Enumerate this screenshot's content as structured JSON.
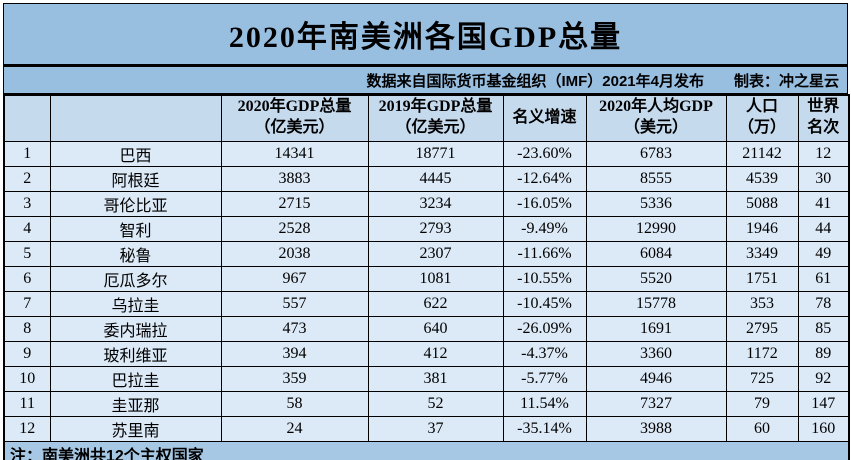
{
  "title": "2020年南美洲各国GDP总量",
  "subtitle": {
    "source": "数据来自国际货币基金组织（IMF）2021年4月发布",
    "credit": "制表：冲之星云"
  },
  "note": "注：南美洲共12个主权国家",
  "chart_data": {
    "type": "table",
    "title": "2020年南美洲各国GDP总量",
    "subtitle": "数据来自国际货币基金组织（IMF）2021年4月发布 制表：冲之星云",
    "column_keys": [
      "rank",
      "country",
      "gdp-2020",
      "gdp-2019",
      "nominal-growth",
      "gdp-per-capita-2020",
      "population-10k",
      "world-rank"
    ],
    "columns": [
      "",
      "",
      "2020年GDP总量（亿美元）",
      "2019年GDP总量（亿美元）",
      "名义增速",
      "2020年人均GDP（美元）",
      "人口（万）",
      "世界名次"
    ],
    "header_lines": [
      [
        ""
      ],
      [
        ""
      ],
      [
        "2020年GDP总量",
        "（亿美元）"
      ],
      [
        "2019年GDP总量",
        "（亿美元）"
      ],
      [
        "名义增速"
      ],
      [
        "2020年人均GDP",
        "（美元）"
      ],
      [
        "人口",
        "（万）"
      ],
      [
        "世界",
        "名次"
      ]
    ],
    "rows": [
      [
        "1",
        "巴西",
        "14341",
        "18771",
        "-23.60%",
        "6783",
        "21142",
        "12"
      ],
      [
        "2",
        "阿根廷",
        "3883",
        "4445",
        "-12.64%",
        "8555",
        "4539",
        "30"
      ],
      [
        "3",
        "哥伦比亚",
        "2715",
        "3234",
        "-16.05%",
        "5336",
        "5088",
        "41"
      ],
      [
        "4",
        "智利",
        "2528",
        "2793",
        "-9.49%",
        "12990",
        "1946",
        "44"
      ],
      [
        "5",
        "秘鲁",
        "2038",
        "2307",
        "-11.66%",
        "6084",
        "3349",
        "49"
      ],
      [
        "6",
        "厄瓜多尔",
        "967",
        "1081",
        "-10.55%",
        "5520",
        "1751",
        "61"
      ],
      [
        "7",
        "乌拉圭",
        "557",
        "622",
        "-10.45%",
        "15778",
        "353",
        "78"
      ],
      [
        "8",
        "委内瑞拉",
        "473",
        "640",
        "-26.09%",
        "1691",
        "2795",
        "85"
      ],
      [
        "9",
        "玻利维亚",
        "394",
        "412",
        "-4.37%",
        "3360",
        "1172",
        "89"
      ],
      [
        "10",
        "巴拉圭",
        "359",
        "381",
        "-5.77%",
        "4946",
        "725",
        "92"
      ],
      [
        "11",
        "圭亚那",
        "58",
        "52",
        "11.54%",
        "7327",
        "79",
        "147"
      ],
      [
        "12",
        "苏里南",
        "24",
        "37",
        "-35.14%",
        "3988",
        "60",
        "160"
      ]
    ],
    "note": "注：南美洲共12个主权国家"
  },
  "colors": {
    "band_blue": "#98bee0",
    "header_blue": "#c6daee",
    "row_blue": "#dce9f6",
    "note_blue": "#a6c8e4",
    "border_black": "#000000",
    "text_black": "#000000",
    "page_bg": "#ffffff"
  }
}
